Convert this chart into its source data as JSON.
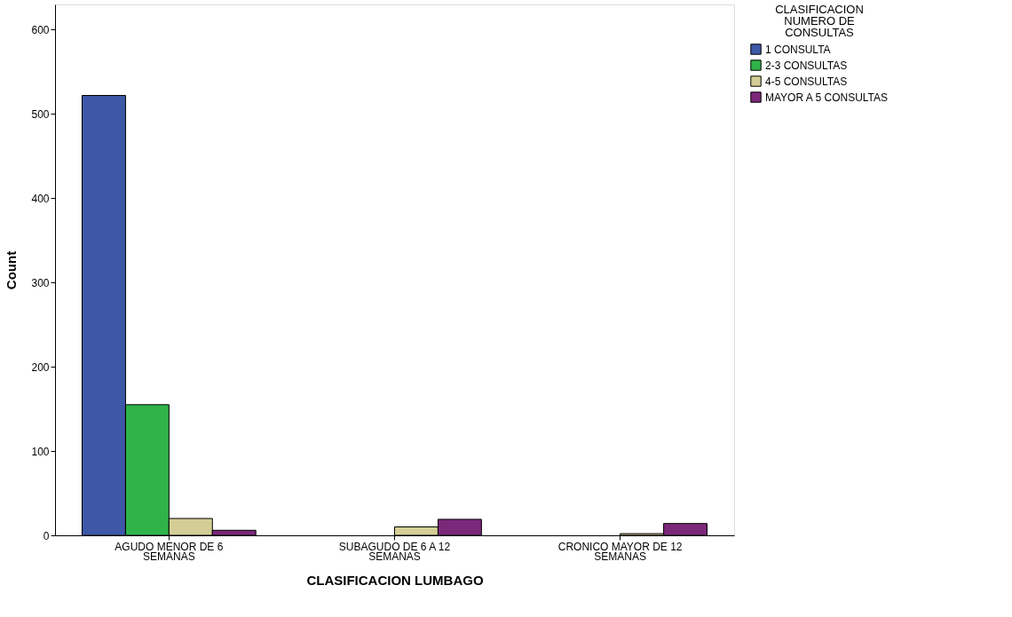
{
  "chart_data": {
    "type": "bar",
    "xlabel": "CLASIFICACION LUMBAGO",
    "ylabel": "Count",
    "legend_title": "CLASIFICACION NUMERO DE CONSULTAS",
    "categories": [
      "AGUDO MENOR DE 6 SEMANAS",
      "SUBAGUDO DE 6 A 12 SEMANAS",
      "CRONICO MAYOR DE 12 SEMANAS"
    ],
    "series": [
      {
        "name": "1 CONSULTA",
        "color": "#3e58a8",
        "values": [
          522,
          null,
          null
        ]
      },
      {
        "name": "2-3 CONSULTAS",
        "color": "#30b44a",
        "values": [
          155,
          null,
          null
        ]
      },
      {
        "name": "4-5 CONSULTAS",
        "color": "#d4ce96",
        "values": [
          20,
          10,
          2
        ]
      },
      {
        "name": "MAYOR A 5 CONSULTAS",
        "color": "#7b287a",
        "values": [
          6,
          19,
          14
        ]
      }
    ],
    "ylim": [
      0,
      630
    ],
    "yticks": [
      0,
      100,
      200,
      300,
      400,
      500,
      600
    ],
    "grid": false,
    "legend": "top right"
  }
}
